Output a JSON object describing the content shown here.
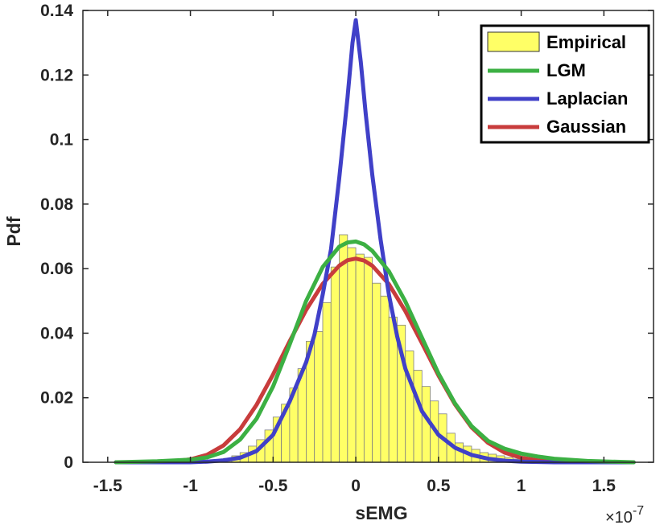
{
  "chart_data": {
    "type": "histogram+line",
    "xlabel": "sEMG",
    "ylabel": "Pdf",
    "x_multiplier_label": "×10",
    "x_multiplier_exponent": "-7",
    "xlim": [
      -1.65,
      1.8
    ],
    "ylim": [
      0,
      0.14
    ],
    "xticks": [
      -1.5,
      -1,
      -0.5,
      0,
      0.5,
      1,
      1.5
    ],
    "xtick_labels": [
      "-1.5",
      "-1",
      "-0.5",
      "0",
      "0.5",
      "1",
      "1.5"
    ],
    "yticks": [
      0,
      0.02,
      0.04,
      0.06,
      0.08,
      0.1,
      0.12,
      0.14
    ],
    "ytick_labels": [
      "0",
      "0.02",
      "0.04",
      "0.06",
      "0.08",
      "0.1",
      "0.12",
      "0.14"
    ],
    "legend": {
      "position": "top-right",
      "entries": [
        {
          "label": "Empirical",
          "kind": "patch",
          "color": "#ffff66"
        },
        {
          "label": "LGM",
          "kind": "line",
          "color": "#3cb043"
        },
        {
          "label": "Laplacian",
          "kind": "line",
          "color": "#4040c8"
        },
        {
          "label": "Gaussian",
          "kind": "line",
          "color": "#c83c3c"
        }
      ]
    },
    "histogram": {
      "name": "Empirical",
      "color": "#ffff66",
      "edge_color": "#808080",
      "bin_width": 0.05,
      "bin_centers": [
        -0.875,
        -0.825,
        -0.775,
        -0.725,
        -0.675,
        -0.625,
        -0.575,
        -0.525,
        -0.475,
        -0.425,
        -0.375,
        -0.325,
        -0.275,
        -0.225,
        -0.175,
        -0.125,
        -0.075,
        -0.025,
        0.025,
        0.075,
        0.125,
        0.175,
        0.225,
        0.275,
        0.325,
        0.375,
        0.425,
        0.475,
        0.525,
        0.575,
        0.625,
        0.675,
        0.725,
        0.775,
        0.825,
        0.875,
        0.925,
        0.975
      ],
      "values": [
        0.0003,
        0.0006,
        0.0012,
        0.002,
        0.003,
        0.005,
        0.007,
        0.01,
        0.014,
        0.018,
        0.023,
        0.029,
        0.0375,
        0.0405,
        0.0495,
        0.0605,
        0.0705,
        0.0665,
        0.0645,
        0.0635,
        0.0555,
        0.0515,
        0.045,
        0.0425,
        0.0345,
        0.0285,
        0.0235,
        0.019,
        0.015,
        0.009,
        0.006,
        0.005,
        0.004,
        0.003,
        0.0025,
        0.002,
        0.0015,
        0.001
      ]
    },
    "series": [
      {
        "name": "Gaussian",
        "color": "#c83c3c",
        "x": [
          -1.45,
          -1.3,
          -1.2,
          -1.1,
          -1.0,
          -0.9,
          -0.8,
          -0.7,
          -0.6,
          -0.5,
          -0.4,
          -0.3,
          -0.2,
          -0.1,
          -0.05,
          0.0,
          0.05,
          0.1,
          0.2,
          0.3,
          0.4,
          0.5,
          0.6,
          0.7,
          0.8,
          0.9,
          1.0,
          1.1,
          1.2,
          1.3,
          1.45,
          1.68
        ],
        "y": [
          0.0,
          0.0,
          0.0001,
          0.0003,
          0.0009,
          0.0023,
          0.0052,
          0.0102,
          0.0178,
          0.0272,
          0.0375,
          0.0472,
          0.0553,
          0.0609,
          0.0626,
          0.0631,
          0.0625,
          0.0609,
          0.0552,
          0.0468,
          0.0369,
          0.0269,
          0.0179,
          0.0108,
          0.006,
          0.003,
          0.0014,
          0.0006,
          0.0002,
          0.0001,
          0.0,
          0.0
        ]
      },
      {
        "name": "Laplacian",
        "color": "#4040c8",
        "x": [
          -1.45,
          -1.2,
          -1.0,
          -0.9,
          -0.8,
          -0.7,
          -0.6,
          -0.5,
          -0.4,
          -0.3,
          -0.25,
          -0.2,
          -0.15,
          -0.1,
          -0.05,
          -0.02,
          0.0,
          0.03,
          0.06,
          0.1,
          0.15,
          0.2,
          0.25,
          0.3,
          0.4,
          0.5,
          0.6,
          0.7,
          0.8,
          0.9,
          1.0,
          1.2,
          1.68
        ],
        "y": [
          0.0,
          0.0,
          0.0,
          0.0002,
          0.0006,
          0.0014,
          0.0035,
          0.0085,
          0.0188,
          0.031,
          0.0395,
          0.052,
          0.066,
          0.088,
          0.113,
          0.13,
          0.137,
          0.124,
          0.108,
          0.089,
          0.069,
          0.052,
          0.039,
          0.029,
          0.0158,
          0.0085,
          0.0045,
          0.0023,
          0.0011,
          0.0005,
          0.0002,
          0.0,
          0.0
        ]
      },
      {
        "name": "LGM",
        "color": "#3cb043",
        "x": [
          -1.45,
          -1.2,
          -1.0,
          -0.9,
          -0.8,
          -0.7,
          -0.6,
          -0.5,
          -0.4,
          -0.3,
          -0.2,
          -0.1,
          -0.05,
          0.0,
          0.05,
          0.1,
          0.2,
          0.3,
          0.4,
          0.5,
          0.6,
          0.7,
          0.8,
          0.9,
          1.0,
          1.1,
          1.2,
          1.4,
          1.68
        ],
        "y": [
          0.0,
          0.0003,
          0.0008,
          0.0015,
          0.0032,
          0.007,
          0.0135,
          0.0235,
          0.0365,
          0.05,
          0.0605,
          0.0668,
          0.0681,
          0.0684,
          0.0675,
          0.0655,
          0.0592,
          0.0498,
          0.0386,
          0.0275,
          0.0182,
          0.0112,
          0.0066,
          0.0042,
          0.0027,
          0.0018,
          0.0011,
          0.0004,
          0.0
        ]
      }
    ]
  }
}
